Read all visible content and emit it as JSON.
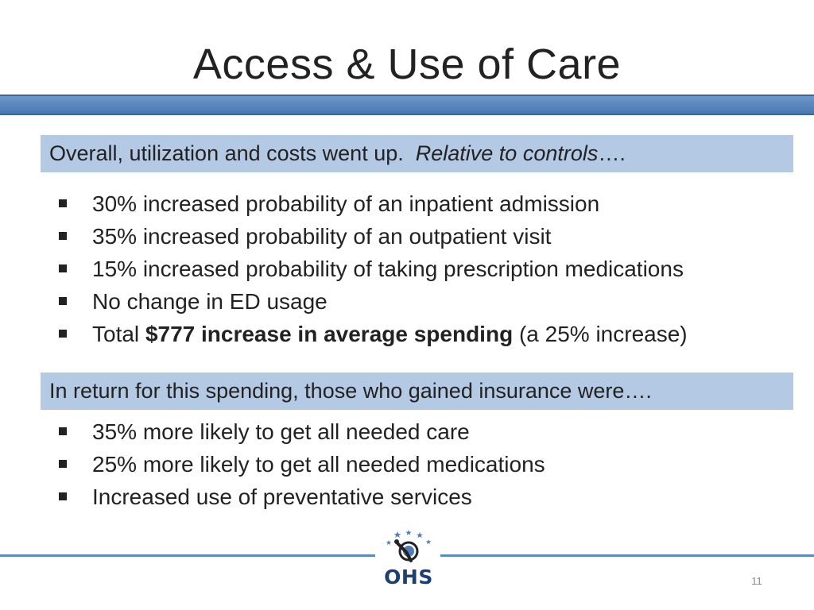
{
  "slide": {
    "title": "Access & Use of Care",
    "page_number": "11"
  },
  "section1": {
    "heading_plain": "Overall, utilization and costs went up.",
    "heading_italic": "Relative to controls",
    "heading_suffix": "….",
    "items": [
      "30% increased probability of an inpatient admission",
      "35% increased probability of an outpatient visit",
      "15% increased probability of taking prescription medications",
      "No change in ED usage"
    ],
    "last_item": {
      "prefix": "Total",
      "bold": "$777 increase in average spending",
      "suffix": "(a 25% increase)"
    }
  },
  "section2": {
    "heading": "In return for this spending, those who gained insurance were….",
    "items": [
      "35% more likely to get all needed care",
      "25% more likely to get all needed medications",
      "Increased use of preventative services"
    ]
  },
  "logo": {
    "text": "OHS",
    "icon": "ohs-figure-with-stars-icon"
  },
  "colors": {
    "bar_blue": "#4f7fba",
    "box_blue": "#b4c9e3",
    "logo_navy": "#1f3f73"
  }
}
